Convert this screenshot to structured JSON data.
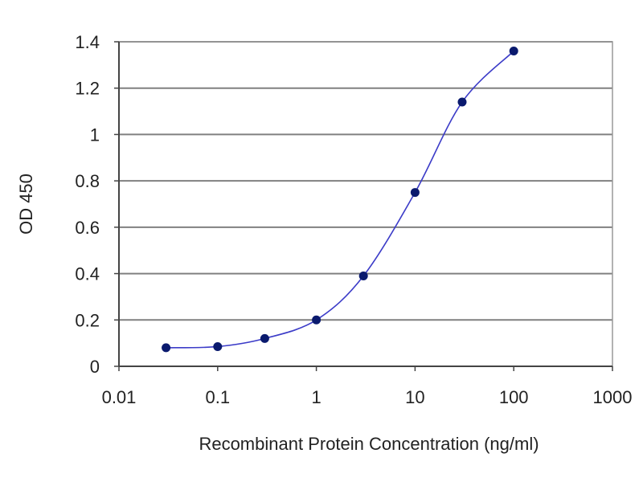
{
  "chart_data": {
    "type": "line",
    "title": "",
    "xlabel": "Recombinant Protein Concentration (ng/ml)",
    "ylabel": "OD 450",
    "x_scale": "log",
    "xlim": [
      0.01,
      1000
    ],
    "ylim": [
      0,
      1.4
    ],
    "grid": {
      "horizontal": true,
      "vertical": false
    },
    "x_ticks": [
      "0.01",
      "0.1",
      "1",
      "10",
      "100",
      "1000"
    ],
    "y_ticks": [
      "0",
      "0.2",
      "0.4",
      "0.6",
      "0.8",
      "1",
      "1.2",
      "1.4"
    ],
    "series": [
      {
        "x": [
          0.03,
          0.1,
          0.3,
          1,
          3,
          10,
          30,
          100
        ],
        "values": [
          0.08,
          0.085,
          0.12,
          0.2,
          0.39,
          0.75,
          1.14,
          1.36
        ]
      }
    ],
    "colors": {
      "line": "#3c3cc8",
      "marker": "#0a1a6e",
      "plot_background": "#ffffff",
      "gridline": "#808080",
      "frame": "#999999"
    }
  }
}
